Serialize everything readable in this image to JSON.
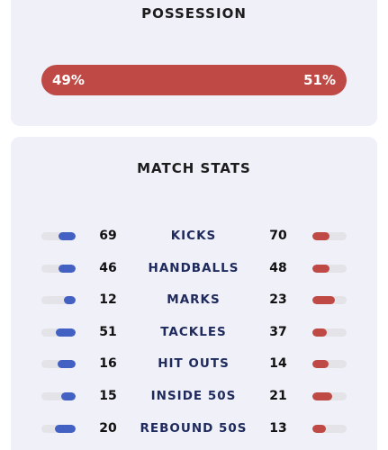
{
  "possession": {
    "title": "POSSESSION",
    "home_label": "49%",
    "away_label": "51%",
    "home_fraction": 0.49,
    "away_fraction": 0.51,
    "color": "#bf4a45"
  },
  "match_stats": {
    "title": "MATCH STATS",
    "home_color": "#4361c2",
    "away_color": "#bf4a45",
    "rows": [
      {
        "label": "KICKS",
        "home": "69",
        "away": "70"
      },
      {
        "label": "HANDBALLS",
        "home": "46",
        "away": "48"
      },
      {
        "label": "MARKS",
        "home": "12",
        "away": "23"
      },
      {
        "label": "TACKLES",
        "home": "51",
        "away": "37"
      },
      {
        "label": "HIT OUTS",
        "home": "16",
        "away": "14"
      },
      {
        "label": "INSIDE 50S",
        "home": "15",
        "away": "21"
      },
      {
        "label": "REBOUND 50S",
        "home": "20",
        "away": "13"
      }
    ]
  }
}
